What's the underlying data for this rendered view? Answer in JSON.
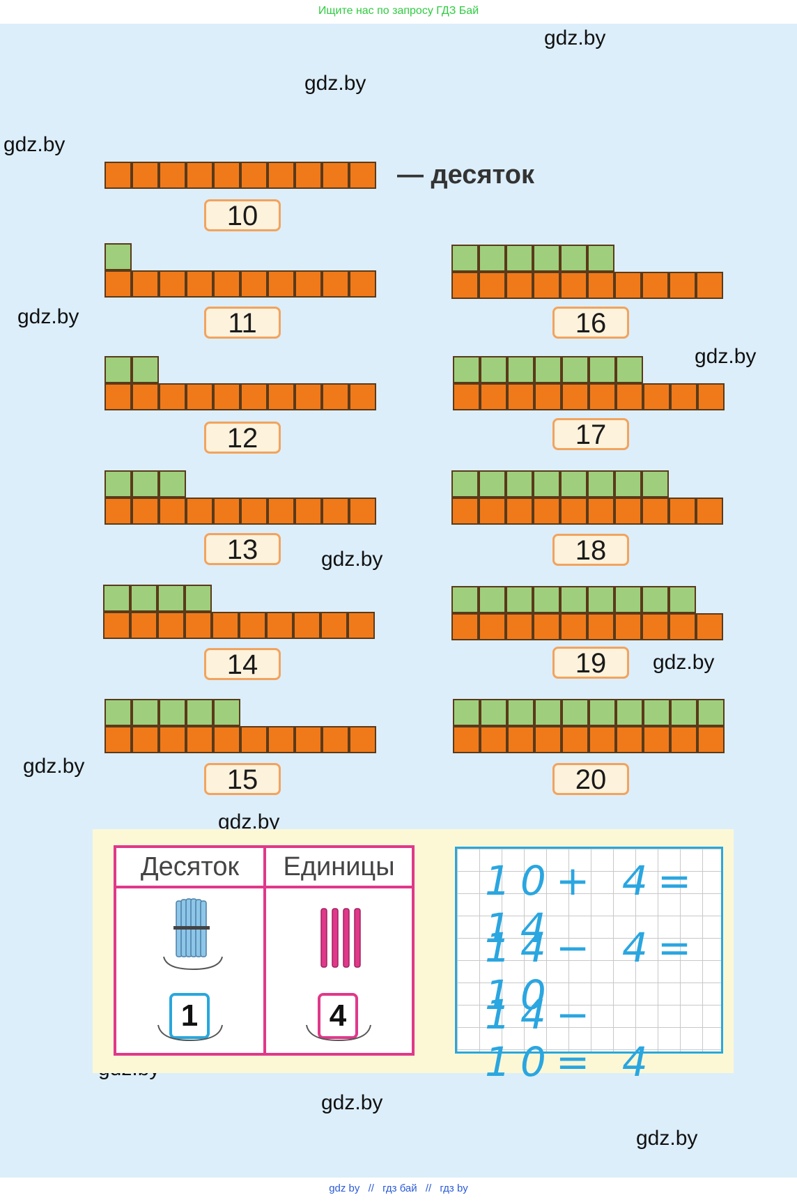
{
  "topbar": {
    "search_text": "Ищите нас по запросу ГДЗ Бай"
  },
  "watermarks": [
    "gdz.by",
    "gdz.by",
    "gdz.by",
    "gdz.by",
    "gdz.by",
    "gdz.by",
    "gdz.by",
    "gdz.by",
    "gdz.by",
    "gdz.by",
    "gdz.by",
    "gdz.by",
    "gdz.by",
    "gdz.by"
  ],
  "header": {
    "ten_label": "— десяток"
  },
  "numbers": {
    "n10": "10",
    "n11": "11",
    "n12": "12",
    "n13": "13",
    "n14": "14",
    "n15": "15",
    "n16": "16",
    "n17": "17",
    "n18": "18",
    "n19": "19",
    "n20": "20"
  },
  "place_value": {
    "tens_header": "Десяток",
    "units_header": "Единицы",
    "tens_value": "1",
    "units_value": "4"
  },
  "equations": [
    "10+ 4= 14",
    "14− 4= 10",
    "14− 10= 4"
  ],
  "footer": {
    "link1": "gdz by",
    "link2": "гдз бай",
    "link3": "гдз by",
    "separator": "//"
  },
  "colors": {
    "orange": "#f07a1a",
    "green": "#9fcf7c",
    "pink": "#e0388a",
    "blue": "#29a7dc"
  }
}
